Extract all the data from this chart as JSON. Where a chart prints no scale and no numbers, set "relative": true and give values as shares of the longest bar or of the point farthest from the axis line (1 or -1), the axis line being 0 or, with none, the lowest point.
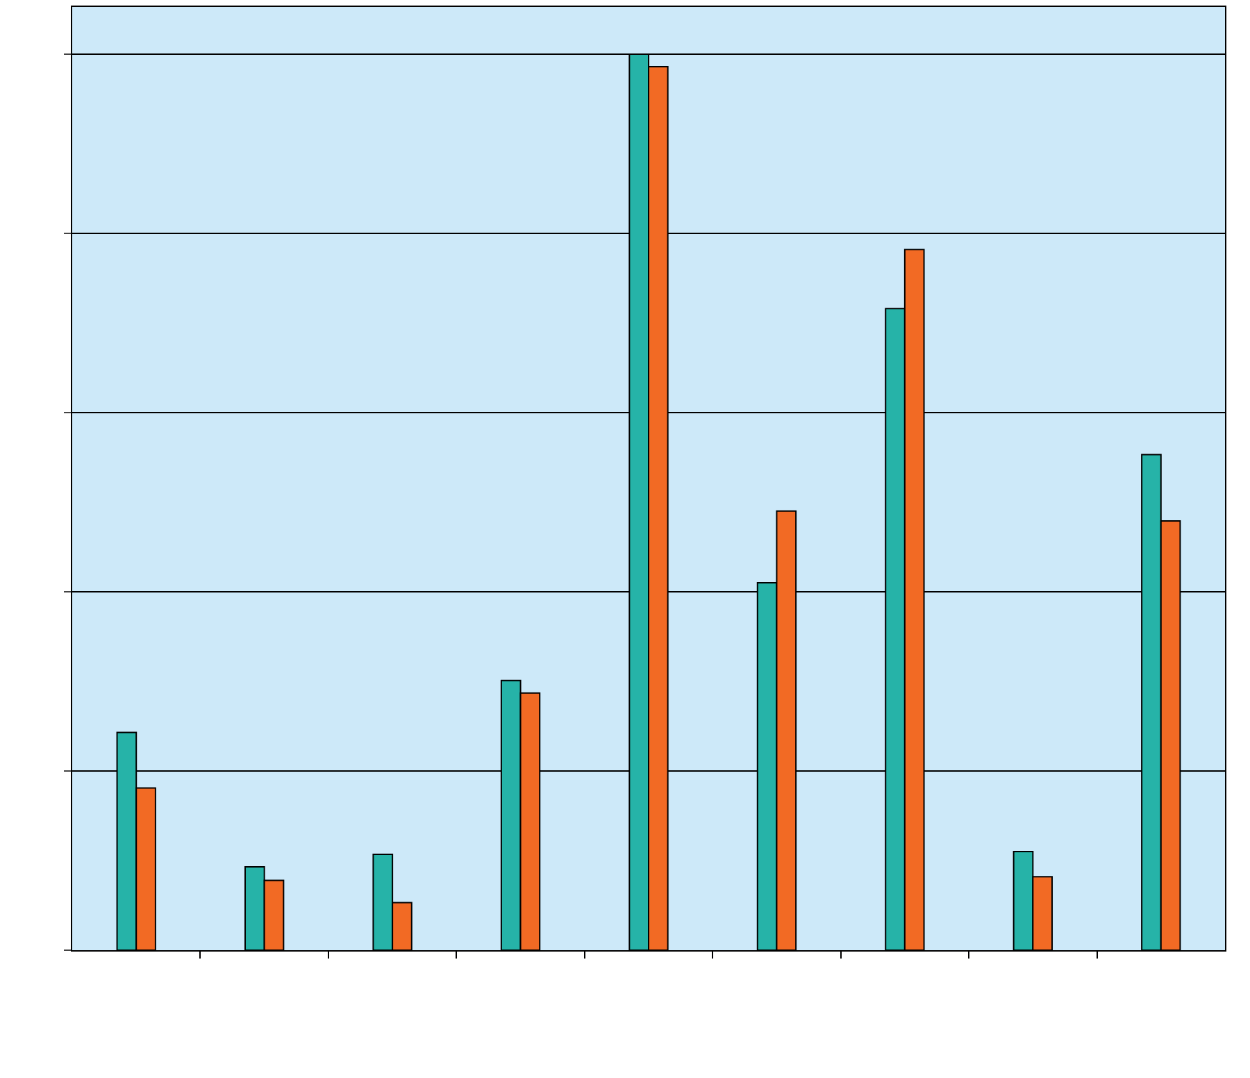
{
  "chart_data": {
    "type": "bar",
    "relative": true,
    "categories": [
      null,
      null,
      null,
      null,
      null,
      null,
      null,
      null,
      null
    ],
    "series": [
      {
        "color": "#26b3a8",
        "values": [
          0.243,
          0.093,
          0.107,
          0.301,
          1,
          0.41,
          0.716,
          0.11,
          0.553
        ]
      },
      {
        "color": "#f26a24",
        "values": [
          0.181,
          0.078,
          0.053,
          0.287,
          0.986,
          0.49,
          0.782,
          0.082,
          0.479
        ]
      }
    ],
    "grid": "y",
    "tick_labels": false
  }
}
